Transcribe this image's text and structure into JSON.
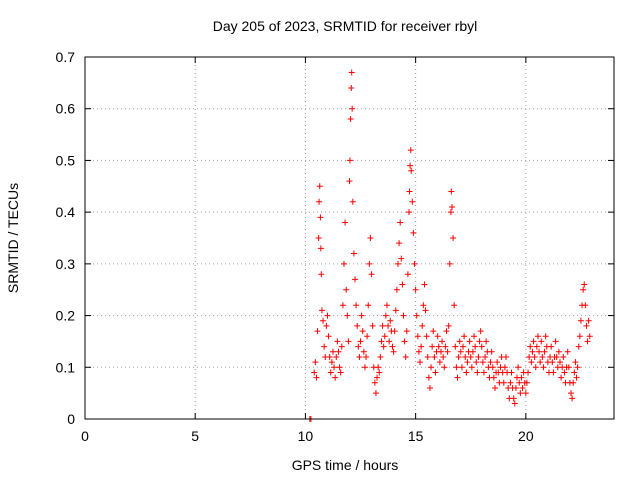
{
  "chart_data": {
    "type": "scatter",
    "title": "Day 205 of 2023, SRMTID for receiver rbyl",
    "xlabel": "GPS time / hours",
    "ylabel": "SRMTID / TECUs",
    "xlim": [
      0,
      24
    ],
    "ylim": [
      0,
      0.7
    ],
    "xticks": [
      0,
      5,
      10,
      15,
      20
    ],
    "xtick_labels": [
      "0",
      "5",
      "10",
      "15",
      "20"
    ],
    "yticks": [
      0,
      0.1,
      0.2,
      0.3,
      0.4,
      0.5,
      0.6,
      0.7
    ],
    "ytick_labels": [
      "0",
      "0.1",
      "0.2",
      "0.3",
      "0.4",
      "0.5",
      "0.6",
      "0.7"
    ],
    "grid": true,
    "marker": "plus",
    "color": "#ff0000",
    "series": [
      {
        "name": "SRMTID",
        "points": [
          [
            10.2,
            0.0
          ],
          [
            10.25,
            0.0
          ],
          [
            10.4,
            0.09
          ],
          [
            10.45,
            0.11
          ],
          [
            10.5,
            0.08
          ],
          [
            10.55,
            0.17
          ],
          [
            10.6,
            0.35
          ],
          [
            10.62,
            0.42
          ],
          [
            10.65,
            0.45
          ],
          [
            10.68,
            0.39
          ],
          [
            10.7,
            0.33
          ],
          [
            10.72,
            0.28
          ],
          [
            10.75,
            0.21
          ],
          [
            10.8,
            0.19
          ],
          [
            10.85,
            0.14
          ],
          [
            10.9,
            0.12
          ],
          [
            10.95,
            0.18
          ],
          [
            11.0,
            0.2
          ],
          [
            11.05,
            0.16
          ],
          [
            11.1,
            0.12
          ],
          [
            11.15,
            0.09
          ],
          [
            11.2,
            0.11
          ],
          [
            11.25,
            0.13
          ],
          [
            11.3,
            0.1
          ],
          [
            11.35,
            0.08
          ],
          [
            11.4,
            0.12
          ],
          [
            11.45,
            0.15
          ],
          [
            11.5,
            0.13
          ],
          [
            11.55,
            0.1
          ],
          [
            11.6,
            0.09
          ],
          [
            11.65,
            0.14
          ],
          [
            11.7,
            0.22
          ],
          [
            11.75,
            0.3
          ],
          [
            11.8,
            0.38
          ],
          [
            11.85,
            0.25
          ],
          [
            11.9,
            0.2
          ],
          [
            11.95,
            0.15
          ],
          [
            12.0,
            0.46
          ],
          [
            12.02,
            0.5
          ],
          [
            12.05,
            0.58
          ],
          [
            12.08,
            0.64
          ],
          [
            12.1,
            0.67
          ],
          [
            12.12,
            0.6
          ],
          [
            12.15,
            0.42
          ],
          [
            12.2,
            0.32
          ],
          [
            12.25,
            0.27
          ],
          [
            12.3,
            0.22
          ],
          [
            12.35,
            0.18
          ],
          [
            12.4,
            0.14
          ],
          [
            12.45,
            0.12
          ],
          [
            12.5,
            0.15
          ],
          [
            12.55,
            0.2
          ],
          [
            12.6,
            0.17
          ],
          [
            12.65,
            0.13
          ],
          [
            12.7,
            0.1
          ],
          [
            12.75,
            0.12
          ],
          [
            12.8,
            0.16
          ],
          [
            12.85,
            0.22
          ],
          [
            12.9,
            0.3
          ],
          [
            12.95,
            0.35
          ],
          [
            13.0,
            0.28
          ],
          [
            13.05,
            0.18
          ],
          [
            13.1,
            0.1
          ],
          [
            13.15,
            0.07
          ],
          [
            13.2,
            0.05
          ],
          [
            13.25,
            0.08
          ],
          [
            13.3,
            0.1
          ],
          [
            13.35,
            0.09
          ],
          [
            13.4,
            0.12
          ],
          [
            13.45,
            0.15
          ],
          [
            13.5,
            0.18
          ],
          [
            13.55,
            0.14
          ],
          [
            13.6,
            0.16
          ],
          [
            13.65,
            0.2
          ],
          [
            13.7,
            0.22
          ],
          [
            13.75,
            0.18
          ],
          [
            13.8,
            0.15
          ],
          [
            13.85,
            0.19
          ],
          [
            13.9,
            0.17
          ],
          [
            13.95,
            0.14
          ],
          [
            14.0,
            0.13
          ],
          [
            14.05,
            0.17
          ],
          [
            14.1,
            0.21
          ],
          [
            14.15,
            0.25
          ],
          [
            14.2,
            0.3
          ],
          [
            14.25,
            0.34
          ],
          [
            14.3,
            0.38
          ],
          [
            14.35,
            0.31
          ],
          [
            14.4,
            0.26
          ],
          [
            14.45,
            0.2
          ],
          [
            14.5,
            0.15
          ],
          [
            14.55,
            0.12
          ],
          [
            14.6,
            0.17
          ],
          [
            14.65,
            0.28
          ],
          [
            14.7,
            0.4
          ],
          [
            14.72,
            0.44
          ],
          [
            14.75,
            0.49
          ],
          [
            14.78,
            0.52
          ],
          [
            14.8,
            0.48
          ],
          [
            14.85,
            0.42
          ],
          [
            14.9,
            0.36
          ],
          [
            14.95,
            0.3
          ],
          [
            15.0,
            0.25
          ],
          [
            15.05,
            0.2
          ],
          [
            15.1,
            0.16
          ],
          [
            15.15,
            0.13
          ],
          [
            15.2,
            0.11
          ],
          [
            15.25,
            0.14
          ],
          [
            15.3,
            0.18
          ],
          [
            15.35,
            0.22
          ],
          [
            15.4,
            0.26
          ],
          [
            15.45,
            0.21
          ],
          [
            15.5,
            0.16
          ],
          [
            15.55,
            0.12
          ],
          [
            15.6,
            0.08
          ],
          [
            15.65,
            0.06
          ],
          [
            15.7,
            0.1
          ],
          [
            15.75,
            0.14
          ],
          [
            15.8,
            0.17
          ],
          [
            15.85,
            0.12
          ],
          [
            15.9,
            0.09
          ],
          [
            15.95,
            0.13
          ],
          [
            16.0,
            0.16
          ],
          [
            16.05,
            0.14
          ],
          [
            16.1,
            0.11
          ],
          [
            16.15,
            0.13
          ],
          [
            16.2,
            0.15
          ],
          [
            16.25,
            0.12
          ],
          [
            16.3,
            0.1
          ],
          [
            16.35,
            0.14
          ],
          [
            16.4,
            0.17
          ],
          [
            16.45,
            0.13
          ],
          [
            16.5,
            0.18
          ],
          [
            16.55,
            0.3
          ],
          [
            16.6,
            0.4
          ],
          [
            16.62,
            0.44
          ],
          [
            16.65,
            0.41
          ],
          [
            16.7,
            0.35
          ],
          [
            16.75,
            0.22
          ],
          [
            16.8,
            0.14
          ],
          [
            16.85,
            0.1
          ],
          [
            16.9,
            0.08
          ],
          [
            16.95,
            0.12
          ],
          [
            17.0,
            0.15
          ],
          [
            17.05,
            0.13
          ],
          [
            17.1,
            0.1
          ],
          [
            17.15,
            0.14
          ],
          [
            17.2,
            0.16
          ],
          [
            17.25,
            0.12
          ],
          [
            17.3,
            0.09
          ],
          [
            17.35,
            0.11
          ],
          [
            17.4,
            0.13
          ],
          [
            17.45,
            0.15
          ],
          [
            17.5,
            0.12
          ],
          [
            17.55,
            0.1
          ],
          [
            17.6,
            0.13
          ],
          [
            17.65,
            0.16
          ],
          [
            17.7,
            0.14
          ],
          [
            17.75,
            0.11
          ],
          [
            17.8,
            0.09
          ],
          [
            17.85,
            0.12
          ],
          [
            17.9,
            0.15
          ],
          [
            17.95,
            0.17
          ],
          [
            18.0,
            0.14
          ],
          [
            18.05,
            0.11
          ],
          [
            18.1,
            0.09
          ],
          [
            18.15,
            0.12
          ],
          [
            18.2,
            0.15
          ],
          [
            18.25,
            0.13
          ],
          [
            18.3,
            0.1
          ],
          [
            18.35,
            0.08
          ],
          [
            18.4,
            0.11
          ],
          [
            18.45,
            0.13
          ],
          [
            18.5,
            0.1
          ],
          [
            18.55,
            0.08
          ],
          [
            18.6,
            0.06
          ],
          [
            18.65,
            0.09
          ],
          [
            18.7,
            0.11
          ],
          [
            18.75,
            0.09
          ],
          [
            18.8,
            0.07
          ],
          [
            18.85,
            0.1
          ],
          [
            18.9,
            0.12
          ],
          [
            18.95,
            0.09
          ],
          [
            19.0,
            0.07
          ],
          [
            19.05,
            0.1
          ],
          [
            19.1,
            0.12
          ],
          [
            19.15,
            0.09
          ],
          [
            19.2,
            0.06
          ],
          [
            19.25,
            0.04
          ],
          [
            19.3,
            0.07
          ],
          [
            19.35,
            0.09
          ],
          [
            19.4,
            0.06
          ],
          [
            19.45,
            0.04
          ],
          [
            19.5,
            0.03
          ],
          [
            19.55,
            0.06
          ],
          [
            19.6,
            0.08
          ],
          [
            19.65,
            0.1
          ],
          [
            19.7,
            0.07
          ],
          [
            19.75,
            0.05
          ],
          [
            19.8,
            0.08
          ],
          [
            19.85,
            0.06
          ],
          [
            19.9,
            0.09
          ],
          [
            19.95,
            0.07
          ],
          [
            20.0,
            0.05
          ],
          [
            20.05,
            0.07
          ],
          [
            20.1,
            0.09
          ],
          [
            20.15,
            0.12
          ],
          [
            20.2,
            0.14
          ],
          [
            20.25,
            0.11
          ],
          [
            20.3,
            0.13
          ],
          [
            20.35,
            0.15
          ],
          [
            20.4,
            0.12
          ],
          [
            20.45,
            0.1
          ],
          [
            20.5,
            0.14
          ],
          [
            20.55,
            0.16
          ],
          [
            20.6,
            0.13
          ],
          [
            20.65,
            0.11
          ],
          [
            20.7,
            0.15
          ],
          [
            20.75,
            0.12
          ],
          [
            20.8,
            0.1
          ],
          [
            20.85,
            0.13
          ],
          [
            20.9,
            0.16
          ],
          [
            20.95,
            0.14
          ],
          [
            21.0,
            0.11
          ],
          [
            21.05,
            0.09
          ],
          [
            21.1,
            0.12
          ],
          [
            21.15,
            0.14
          ],
          [
            21.2,
            0.11
          ],
          [
            21.25,
            0.09
          ],
          [
            21.3,
            0.12
          ],
          [
            21.35,
            0.15
          ],
          [
            21.4,
            0.12
          ],
          [
            21.45,
            0.1
          ],
          [
            21.5,
            0.13
          ],
          [
            21.55,
            0.11
          ],
          [
            21.6,
            0.08
          ],
          [
            21.65,
            0.1
          ],
          [
            21.7,
            0.12
          ],
          [
            21.75,
            0.09
          ],
          [
            21.8,
            0.07
          ],
          [
            21.85,
            0.1
          ],
          [
            21.9,
            0.13
          ],
          [
            21.95,
            0.1
          ],
          [
            22.0,
            0.07
          ],
          [
            22.05,
            0.05
          ],
          [
            22.1,
            0.04
          ],
          [
            22.15,
            0.07
          ],
          [
            22.2,
            0.09
          ],
          [
            22.25,
            0.11
          ],
          [
            22.3,
            0.08
          ],
          [
            22.35,
            0.1
          ],
          [
            22.4,
            0.14
          ],
          [
            22.45,
            0.16
          ],
          [
            22.5,
            0.19
          ],
          [
            22.55,
            0.22
          ],
          [
            22.6,
            0.25
          ],
          [
            22.65,
            0.26
          ],
          [
            22.7,
            0.22
          ],
          [
            22.75,
            0.18
          ],
          [
            22.8,
            0.15
          ],
          [
            22.85,
            0.19
          ],
          [
            22.9,
            0.16
          ]
        ]
      }
    ]
  }
}
